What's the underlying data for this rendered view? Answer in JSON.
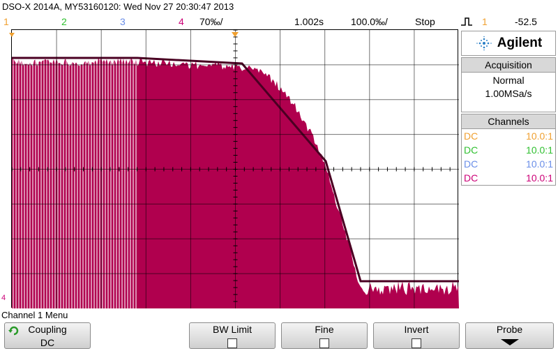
{
  "title": "DSO-X 2014A, MY53160120: Wed Nov 27 20:30:47 2013",
  "status": {
    "ch1": "1",
    "ch2": "2",
    "ch3": "3",
    "ch4": "4",
    "scale": "70‰/",
    "timebase": "1.002s",
    "zoom": "100.0‰/",
    "run_state": "Stop",
    "trigger_icon": "rising-edge-icon",
    "trigger_channel": "1",
    "trigger_level": "-52.5"
  },
  "colors": {
    "ch1": "#f0a030",
    "ch2": "#30c030",
    "ch3": "#6a8ee8",
    "ch4": "#cc0077",
    "waveform": "#b0004e"
  },
  "brand": {
    "name": "Agilent"
  },
  "acquisition": {
    "header": "Acquisition",
    "mode": "Normal",
    "rate": "1.00MSa/s"
  },
  "channels": {
    "header": "Channels",
    "rows": [
      {
        "coupling": "DC",
        "probe": "10.0:1"
      },
      {
        "coupling": "DC",
        "probe": "10.0:1"
      },
      {
        "coupling": "DC",
        "probe": "10.0:1"
      },
      {
        "coupling": "DC",
        "probe": "10.0:1"
      }
    ]
  },
  "ground_marker": "4",
  "menu_title": "Channel 1 Menu",
  "softkeys": {
    "coupling": {
      "label": "Coupling",
      "value": "DC"
    },
    "bw_limit": {
      "label": "BW Limit"
    },
    "fine": {
      "label": "Fine"
    },
    "invert": {
      "label": "Invert"
    },
    "probe": {
      "label": "Probe"
    }
  }
}
